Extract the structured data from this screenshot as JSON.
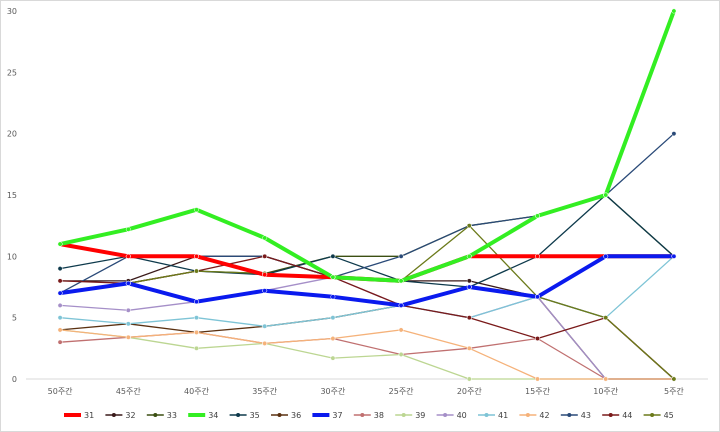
{
  "chart_data": {
    "type": "line",
    "categories": [
      "50주간",
      "45주간",
      "40주간",
      "35주간",
      "30주간",
      "25주간",
      "20주간",
      "15주간",
      "10주간",
      "5주간"
    ],
    "ylim": [
      0,
      30
    ],
    "yticks": [
      0,
      5,
      10,
      15,
      20,
      25,
      30
    ],
    "grid": false,
    "legend_position": "bottom",
    "series": [
      {
        "name": "31",
        "color": "#ff0000",
        "bold": true,
        "values": [
          11,
          10,
          10,
          8.5,
          8.3,
          8,
          10,
          10,
          10,
          10
        ]
      },
      {
        "name": "32",
        "color": "#3a1a1a",
        "bold": false,
        "values": [
          8,
          8,
          10,
          10,
          8.3,
          8,
          8,
          6.7,
          0,
          0
        ]
      },
      {
        "name": "33",
        "color": "#3b4f12",
        "bold": false,
        "values": [
          7,
          7.8,
          8.8,
          8.6,
          10,
          10,
          12.5,
          13.3,
          15,
          10
        ]
      },
      {
        "name": "34",
        "color": "#33ee22",
        "bold": true,
        "values": [
          11,
          12.2,
          13.8,
          11.5,
          8.3,
          8,
          10,
          13.3,
          15,
          30
        ]
      },
      {
        "name": "35",
        "color": "#0e3a4c",
        "bold": false,
        "values": [
          9,
          10,
          8.8,
          8.5,
          10,
          8,
          7.5,
          10,
          15,
          10
        ]
      },
      {
        "name": "36",
        "color": "#5a3010",
        "bold": false,
        "values": [
          4,
          4.5,
          3.8,
          4.3,
          5,
          6,
          7.5,
          6.7,
          5,
          0
        ]
      },
      {
        "name": "37",
        "color": "#0a1aee",
        "bold": true,
        "values": [
          7,
          7.8,
          6.3,
          7.2,
          6.7,
          6,
          7.5,
          6.7,
          10,
          10
        ]
      },
      {
        "name": "38",
        "color": "#c07070",
        "bold": false,
        "values": [
          3,
          3.4,
          3.8,
          2.9,
          3.3,
          2,
          2.5,
          3.3,
          0,
          0
        ]
      },
      {
        "name": "39",
        "color": "#bcd692",
        "bold": false,
        "values": [
          4,
          3.4,
          2.5,
          2.9,
          1.7,
          2,
          0,
          0,
          0,
          0
        ]
      },
      {
        "name": "40",
        "color": "#a58fc8",
        "bold": false,
        "values": [
          6,
          5.6,
          6.3,
          7.2,
          8.3,
          6,
          5,
          6.7,
          0,
          0
        ]
      },
      {
        "name": "41",
        "color": "#7ec4d6",
        "bold": false,
        "values": [
          5,
          4.5,
          5,
          4.3,
          5,
          6,
          5,
          6.7,
          5,
          10
        ]
      },
      {
        "name": "42",
        "color": "#f5b27a",
        "bold": false,
        "values": [
          4,
          3.4,
          3.8,
          2.9,
          3.3,
          4,
          2.5,
          0,
          0,
          0
        ]
      },
      {
        "name": "43",
        "color": "#2a4a78",
        "bold": false,
        "values": [
          7,
          10,
          10,
          10,
          8.3,
          10,
          12.5,
          13.3,
          15,
          20
        ]
      },
      {
        "name": "44",
        "color": "#7a1a1a",
        "bold": false,
        "values": [
          8,
          7.8,
          8.8,
          10,
          8.3,
          6,
          5,
          3.3,
          5,
          0
        ]
      },
      {
        "name": "45",
        "color": "#6b7a1a",
        "bold": false,
        "values": [
          7,
          7.8,
          8.8,
          8.6,
          8.3,
          8,
          12.5,
          6.7,
          5,
          0
        ]
      }
    ]
  }
}
